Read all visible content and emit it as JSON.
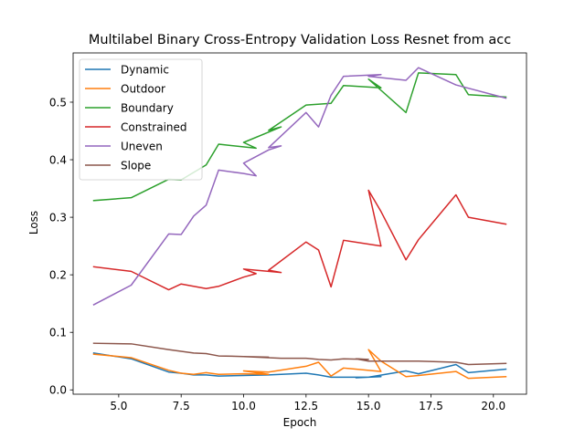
{
  "chart_data": {
    "type": "line",
    "title": "Multilabel Binary Cross-Entropy Validation Loss Resnet from acc",
    "xlabel": "Epoch",
    "ylabel": "Loss",
    "xlim": [
      3.175,
      21.325
    ],
    "ylim": [
      -0.0075,
      0.5856
    ],
    "xticks": [
      5.0,
      7.5,
      10.0,
      12.5,
      15.0,
      17.5,
      20.0
    ],
    "xtick_labels": [
      "5.0",
      "7.5",
      "10.0",
      "12.5",
      "15.0",
      "17.5",
      "20.0"
    ],
    "yticks": [
      0.0,
      0.1,
      0.2,
      0.3,
      0.4,
      0.5
    ],
    "ytick_labels": [
      "0.0",
      "0.1",
      "0.2",
      "0.3",
      "0.4",
      "0.5"
    ],
    "grid": false,
    "legend_position": "upper-left",
    "series": [
      {
        "name": "Dynamic",
        "color": "#1f77b4",
        "x": [
          4.0,
          5.5,
          7.0,
          7.5,
          8.0,
          8.5,
          9.0,
          10.0,
          11.0,
          10.0,
          11.0,
          12.5,
          13.0,
          13.5,
          15.0,
          15.5,
          14.5,
          15.0,
          16.5,
          17.0,
          18.5,
          19.0,
          20.5
        ],
        "y": [
          0.064,
          0.054,
          0.031,
          0.029,
          0.026,
          0.026,
          0.024,
          0.025,
          0.026,
          0.025,
          0.026,
          0.029,
          0.026,
          0.022,
          0.022,
          0.023,
          0.021,
          0.022,
          0.033,
          0.028,
          0.044,
          0.03,
          0.036
        ]
      },
      {
        "name": "Outdoor",
        "color": "#ff7f0e",
        "x": [
          4.0,
          5.5,
          7.0,
          7.5,
          8.0,
          8.5,
          9.0,
          10.0,
          11.0,
          10.0,
          11.0,
          12.5,
          13.0,
          13.5,
          14.0,
          15.5,
          15.0,
          15.5,
          16.5,
          17.0,
          18.5,
          19.0,
          20.5
        ],
        "y": [
          0.062,
          0.056,
          0.034,
          0.029,
          0.027,
          0.03,
          0.027,
          0.028,
          0.027,
          0.033,
          0.031,
          0.041,
          0.048,
          0.024,
          0.038,
          0.032,
          0.07,
          0.05,
          0.023,
          0.025,
          0.032,
          0.02,
          0.023
        ]
      },
      {
        "name": "Boundary",
        "color": "#2ca02c",
        "x": [
          4.0,
          5.5,
          7.0,
          7.5,
          8.5,
          9.0,
          10.5,
          10.0,
          11.0,
          11.5,
          11.0,
          12.5,
          13.5,
          14.0,
          15.5,
          15.0,
          16.5,
          17.0,
          18.5,
          19.0,
          20.5
        ],
        "y": [
          0.329,
          0.334,
          0.366,
          0.365,
          0.391,
          0.427,
          0.42,
          0.43,
          0.448,
          0.457,
          0.451,
          0.495,
          0.498,
          0.529,
          0.525,
          0.54,
          0.482,
          0.551,
          0.548,
          0.513,
          0.509
        ]
      },
      {
        "name": "Constrained",
        "color": "#d62728",
        "x": [
          4.0,
          5.5,
          7.0,
          7.5,
          8.5,
          9.0,
          10.0,
          10.5,
          10.0,
          11.5,
          11.0,
          12.5,
          13.0,
          13.5,
          14.0,
          15.5,
          15.0,
          15.5,
          16.5,
          17.0,
          18.5,
          19.0,
          20.5
        ],
        "y": [
          0.214,
          0.206,
          0.174,
          0.184,
          0.176,
          0.18,
          0.196,
          0.202,
          0.21,
          0.204,
          0.208,
          0.257,
          0.243,
          0.179,
          0.26,
          0.25,
          0.347,
          0.31,
          0.226,
          0.261,
          0.339,
          0.3,
          0.288
        ]
      },
      {
        "name": "Uneven",
        "color": "#9467bd",
        "x": [
          4.0,
          5.5,
          7.0,
          7.5,
          8.0,
          8.5,
          9.0,
          10.0,
          10.5,
          10.0,
          11.0,
          11.5,
          11.0,
          12.5,
          13.0,
          13.5,
          14.0,
          15.5,
          15.0,
          16.5,
          17.0,
          18.5,
          20.5
        ],
        "y": [
          0.148,
          0.182,
          0.271,
          0.27,
          0.302,
          0.321,
          0.382,
          0.376,
          0.372,
          0.394,
          0.417,
          0.424,
          0.421,
          0.482,
          0.457,
          0.512,
          0.545,
          0.548,
          0.545,
          0.538,
          0.56,
          0.53,
          0.507
        ]
      },
      {
        "name": "Slope",
        "color": "#8c564b",
        "x": [
          4.0,
          5.5,
          7.0,
          7.5,
          8.0,
          8.5,
          9.0,
          10.0,
          11.0,
          10.0,
          11.5,
          12.5,
          13.0,
          13.5,
          14.0,
          15.0,
          14.5,
          15.0,
          16.5,
          17.0,
          18.5,
          19.0,
          20.5
        ],
        "y": [
          0.081,
          0.08,
          0.07,
          0.067,
          0.064,
          0.063,
          0.059,
          0.058,
          0.057,
          0.058,
          0.055,
          0.055,
          0.053,
          0.052,
          0.054,
          0.053,
          0.054,
          0.05,
          0.05,
          0.05,
          0.048,
          0.044,
          0.046
        ]
      }
    ]
  }
}
